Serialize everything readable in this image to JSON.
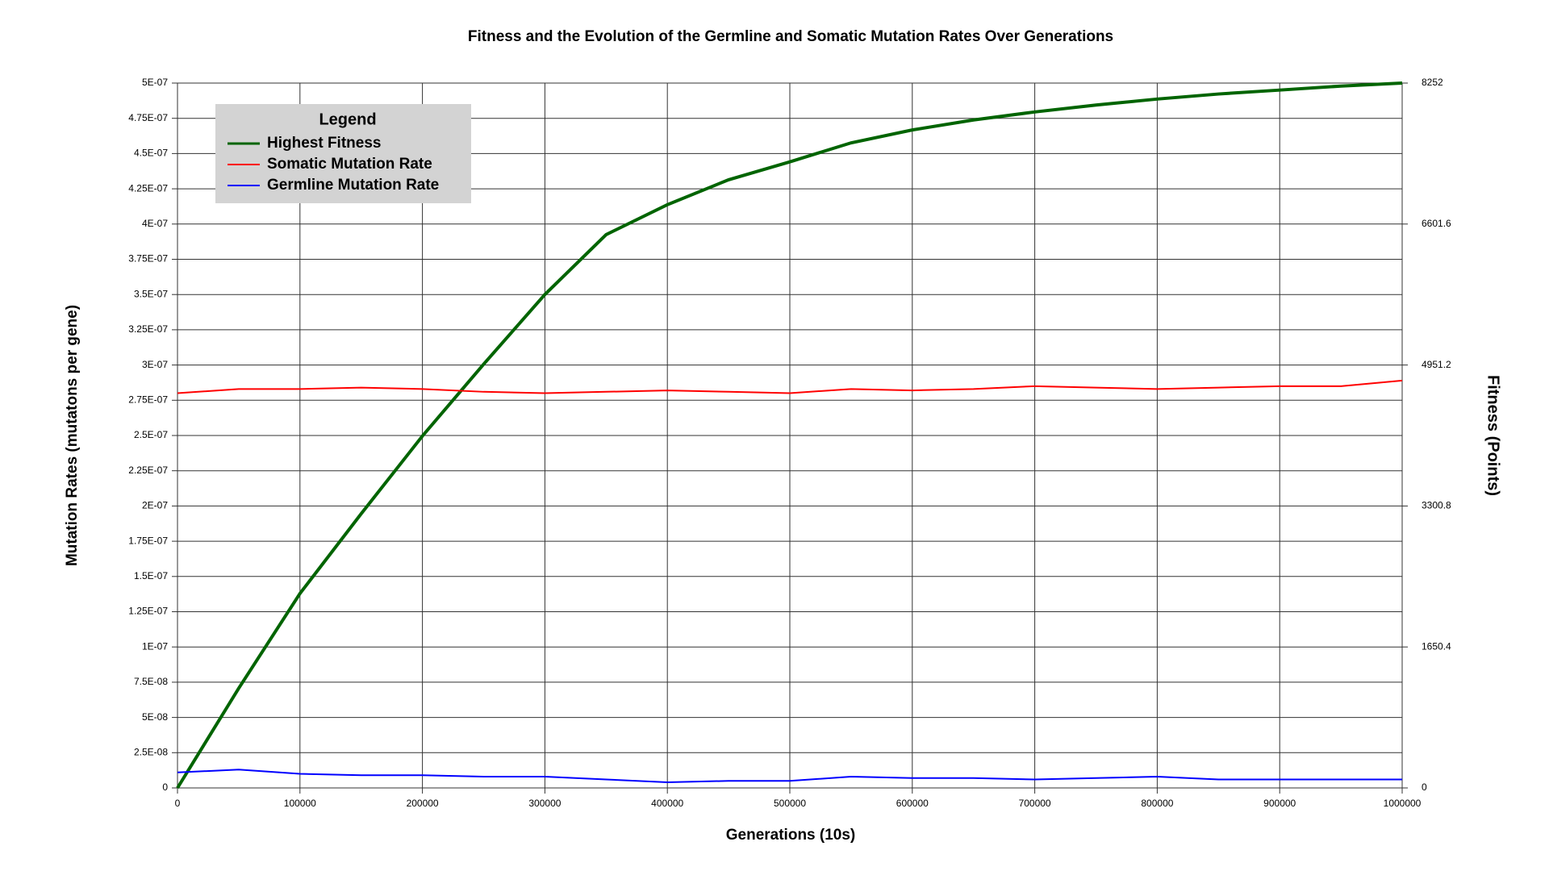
{
  "chart_data": {
    "type": "line",
    "title": "Fitness and the Evolution of the Germline and Somatic Mutation Rates Over Generations",
    "x_label": "Generations (10s)",
    "y_label": "Mutation Rates (mutatons per gene)",
    "y2_label": "Fitness (Points)",
    "legend_title": "Legend",
    "legend_position": "upper-left",
    "grid": true,
    "x": [
      0,
      50000,
      100000,
      150000,
      200000,
      250000,
      300000,
      350000,
      400000,
      450000,
      500000,
      550000,
      600000,
      650000,
      700000,
      750000,
      800000,
      850000,
      900000,
      950000,
      1000000
    ],
    "xlim": [
      0,
      1000000
    ],
    "xticks": [
      0,
      100000,
      200000,
      300000,
      400000,
      500000,
      600000,
      700000,
      800000,
      900000,
      1000000
    ],
    "ylim": [
      0,
      5e-07
    ],
    "yticks": [
      0,
      {
        "value": 2.5e-08,
        "label": "2.5E-08"
      },
      {
        "value": 5e-08,
        "label": "5E-08"
      },
      {
        "value": 7.5e-08,
        "label": "7.5E-08"
      },
      {
        "value": 1e-07,
        "label": "1E-07"
      },
      {
        "value": 1.25e-07,
        "label": "1.25E-07"
      },
      {
        "value": 1.5e-07,
        "label": "1.5E-07"
      },
      {
        "value": 1.75e-07,
        "label": "1.75E-07"
      },
      {
        "value": 2e-07,
        "label": "2E-07"
      },
      {
        "value": 2.25e-07,
        "label": "2.25E-07"
      },
      {
        "value": 2.5e-07,
        "label": "2.5E-07"
      },
      {
        "value": 2.75e-07,
        "label": "2.75E-07"
      },
      {
        "value": 3e-07,
        "label": "3E-07"
      },
      {
        "value": 3.25e-07,
        "label": "3.25E-07"
      },
      {
        "value": 3.5e-07,
        "label": "3.5E-07"
      },
      {
        "value": 3.75e-07,
        "label": "3.75E-07"
      },
      {
        "value": 4e-07,
        "label": "4E-07"
      },
      {
        "value": 4.25e-07,
        "label": "4.25E-07"
      },
      {
        "value": 4.5e-07,
        "label": "4.5E-07"
      },
      {
        "value": 4.75e-07,
        "label": "4.75E-07"
      },
      {
        "value": 5e-07,
        "label": "5E-07"
      }
    ],
    "y2lim": [
      0,
      8252
    ],
    "y2ticks": [
      0,
      1650.4,
      3300.8,
      4951.2,
      6601.6,
      8252
    ],
    "series": [
      {
        "name": "Highest Fitness",
        "color": "#006400",
        "axis": "y2",
        "values": [
          0,
          1167,
          2276,
          3210,
          4120,
          4961,
          5777,
          6478,
          6828,
          7120,
          7330,
          7552,
          7703,
          7820,
          7914,
          7995,
          8065,
          8124,
          8170,
          8217,
          8252
        ]
      },
      {
        "name": "Somatic Mutation Rate",
        "color": "#ff0000",
        "values": [
          2.8e-07,
          2.83e-07,
          2.83e-07,
          2.84e-07,
          2.83e-07,
          2.81e-07,
          2.8e-07,
          2.81e-07,
          2.82e-07,
          2.81e-07,
          2.8e-07,
          2.83e-07,
          2.82e-07,
          2.83e-07,
          2.85e-07,
          2.84e-07,
          2.83e-07,
          2.84e-07,
          2.85e-07,
          2.85e-07,
          2.89e-07
        ]
      },
      {
        "name": "Germline Mutation Rate",
        "color": "#0000ff",
        "values": [
          1.1e-08,
          1.3e-08,
          1e-08,
          9e-09,
          9e-09,
          8e-09,
          8e-09,
          6e-09,
          4e-09,
          5e-09,
          5e-09,
          8e-09,
          7e-09,
          7e-09,
          6e-09,
          7e-09,
          8e-09,
          6e-09,
          6e-09,
          6e-09,
          6e-09
        ]
      }
    ]
  }
}
